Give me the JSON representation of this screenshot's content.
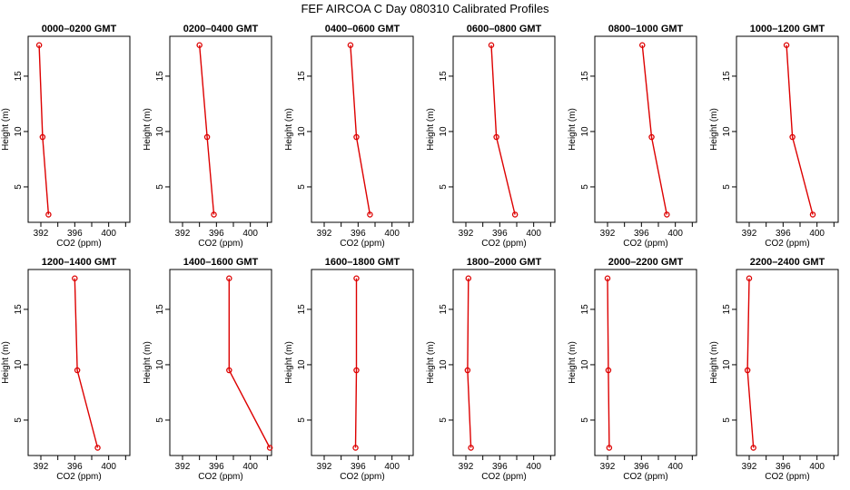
{
  "title": "FEF AIRCOA C  Day 080310  Calibrated Profiles",
  "colors": {
    "series": "#dd0000",
    "frame": "#000000"
  },
  "chart_data": [
    {
      "type": "line",
      "title": "0000–0200 GMT",
      "xlabel": "CO2 (ppm)",
      "ylabel": "Height (m)",
      "xlim": [
        390.5,
        402.5
      ],
      "ylim": [
        1.8,
        18.6
      ],
      "xticks": [
        "392",
        "396",
        "400"
      ],
      "yticks": [
        "5",
        "10",
        "15"
      ],
      "heights": [
        2.5,
        9.5,
        17.8
      ],
      "values": [
        392.9,
        392.2,
        391.8
      ]
    },
    {
      "type": "line",
      "title": "0200–0400 GMT",
      "xlabel": "CO2 (ppm)",
      "ylabel": "Height (m)",
      "xlim": [
        390.5,
        402.5
      ],
      "ylim": [
        1.8,
        18.6
      ],
      "xticks": [
        "392",
        "396",
        "400"
      ],
      "yticks": [
        "5",
        "10",
        "15"
      ],
      "heights": [
        2.5,
        9.5,
        17.8
      ],
      "values": [
        395.7,
        394.9,
        394.0
      ]
    },
    {
      "type": "line",
      "title": "0400–0600 GMT",
      "xlabel": "CO2 (ppm)",
      "ylabel": "Height (m)",
      "xlim": [
        390.5,
        402.5
      ],
      "ylim": [
        1.8,
        18.6
      ],
      "xticks": [
        "392",
        "396",
        "400"
      ],
      "yticks": [
        "5",
        "10",
        "15"
      ],
      "heights": [
        2.5,
        9.5,
        17.8
      ],
      "values": [
        397.4,
        395.8,
        395.1
      ]
    },
    {
      "type": "line",
      "title": "0600–0800 GMT",
      "xlabel": "CO2 (ppm)",
      "ylabel": "Height (m)",
      "xlim": [
        390.5,
        402.5
      ],
      "ylim": [
        1.8,
        18.6
      ],
      "xticks": [
        "392",
        "396",
        "400"
      ],
      "yticks": [
        "5",
        "10",
        "15"
      ],
      "heights": [
        2.5,
        9.5,
        17.8
      ],
      "values": [
        397.8,
        395.6,
        395.0
      ]
    },
    {
      "type": "line",
      "title": "0800–1000 GMT",
      "xlabel": "CO2 (ppm)",
      "ylabel": "Height (m)",
      "xlim": [
        390.5,
        402.5
      ],
      "ylim": [
        1.8,
        18.6
      ],
      "xticks": [
        "392",
        "396",
        "400"
      ],
      "yticks": [
        "5",
        "10",
        "15"
      ],
      "heights": [
        2.5,
        9.5,
        17.8
      ],
      "values": [
        399.0,
        397.2,
        396.1
      ]
    },
    {
      "type": "line",
      "title": "1000–1200 GMT",
      "xlabel": "CO2 (ppm)",
      "ylabel": "Height (m)",
      "xlim": [
        390.5,
        402.5
      ],
      "ylim": [
        1.8,
        18.6
      ],
      "xticks": [
        "392",
        "396",
        "400"
      ],
      "yticks": [
        "5",
        "10",
        "15"
      ],
      "heights": [
        2.5,
        9.5,
        17.8
      ],
      "values": [
        399.5,
        397.1,
        396.4
      ]
    },
    {
      "type": "line",
      "title": "1200–1400 GMT",
      "xlabel": "CO2 (ppm)",
      "ylabel": "Height (m)",
      "xlim": [
        390.5,
        402.5
      ],
      "ylim": [
        1.8,
        18.6
      ],
      "xticks": [
        "392",
        "396",
        "400"
      ],
      "yticks": [
        "5",
        "10",
        "15"
      ],
      "heights": [
        2.5,
        9.5,
        17.8
      ],
      "values": [
        398.7,
        396.3,
        396.0
      ]
    },
    {
      "type": "line",
      "title": "1400–1600 GMT",
      "xlabel": "CO2 (ppm)",
      "ylabel": "Height (m)",
      "xlim": [
        390.5,
        402.5
      ],
      "ylim": [
        1.8,
        18.6
      ],
      "xticks": [
        "392",
        "396",
        "400"
      ],
      "yticks": [
        "5",
        "10",
        "15"
      ],
      "heights": [
        2.5,
        9.5,
        17.8
      ],
      "values": [
        402.3,
        397.5,
        397.5
      ]
    },
    {
      "type": "line",
      "title": "1600–1800 GMT",
      "xlabel": "CO2 (ppm)",
      "ylabel": "Height (m)",
      "xlim": [
        390.5,
        402.5
      ],
      "ylim": [
        1.8,
        18.6
      ],
      "xticks": [
        "392",
        "396",
        "400"
      ],
      "yticks": [
        "5",
        "10",
        "15"
      ],
      "heights": [
        2.5,
        9.5,
        17.8
      ],
      "values": [
        395.7,
        395.8,
        395.8
      ]
    },
    {
      "type": "line",
      "title": "1800–2000 GMT",
      "xlabel": "CO2 (ppm)",
      "ylabel": "Height (m)",
      "xlim": [
        390.5,
        402.5
      ],
      "ylim": [
        1.8,
        18.6
      ],
      "xticks": [
        "392",
        "396",
        "400"
      ],
      "yticks": [
        "5",
        "10",
        "15"
      ],
      "heights": [
        2.5,
        9.5,
        17.8
      ],
      "values": [
        392.6,
        392.2,
        392.3
      ]
    },
    {
      "type": "line",
      "title": "2000–2200 GMT",
      "xlabel": "CO2 (ppm)",
      "ylabel": "Height (m)",
      "xlim": [
        390.5,
        402.5
      ],
      "ylim": [
        1.8,
        18.6
      ],
      "xticks": [
        "392",
        "396",
        "400"
      ],
      "yticks": [
        "5",
        "10",
        "15"
      ],
      "heights": [
        2.5,
        9.5,
        17.8
      ],
      "values": [
        392.2,
        392.1,
        392.0
      ]
    },
    {
      "type": "line",
      "title": "2200–2400 GMT",
      "xlabel": "CO2 (ppm)",
      "ylabel": "Height (m)",
      "xlim": [
        390.5,
        402.5
      ],
      "ylim": [
        1.8,
        18.6
      ],
      "xticks": [
        "392",
        "396",
        "400"
      ],
      "yticks": [
        "5",
        "10",
        "15"
      ],
      "heights": [
        2.5,
        9.5,
        17.8
      ],
      "values": [
        392.5,
        391.8,
        392.0
      ]
    }
  ]
}
